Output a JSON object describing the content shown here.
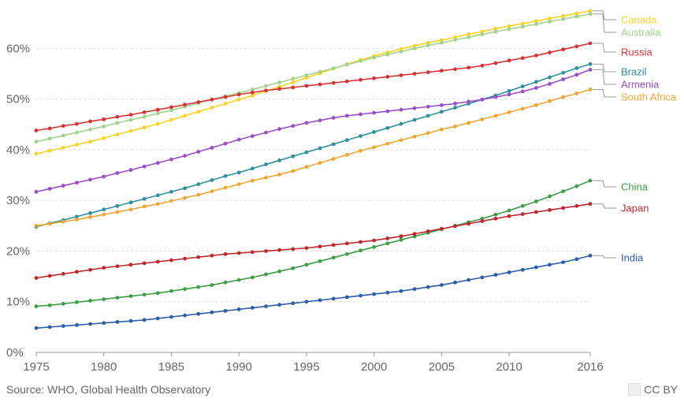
{
  "chart_data": {
    "type": "line",
    "title": "",
    "xlabel": "",
    "ylabel": "",
    "x": [
      1975,
      1976,
      1977,
      1978,
      1979,
      1980,
      1981,
      1982,
      1983,
      1984,
      1985,
      1986,
      1987,
      1988,
      1989,
      1990,
      1991,
      1992,
      1993,
      1994,
      1995,
      1996,
      1997,
      1998,
      1999,
      2000,
      2001,
      2002,
      2003,
      2004,
      2005,
      2006,
      2007,
      2008,
      2009,
      2010,
      2011,
      2012,
      2013,
      2014,
      2015,
      2016
    ],
    "x_ticks": [
      1975,
      1980,
      1985,
      1990,
      1995,
      2000,
      2005,
      2010,
      2016
    ],
    "y_ticks": [
      0,
      10,
      20,
      30,
      40,
      50,
      60
    ],
    "y_tick_labels": [
      "0%",
      "10%",
      "20%",
      "30%",
      "40%",
      "50%",
      "60%"
    ],
    "xlim": [
      1975,
      2016
    ],
    "ylim": [
      0,
      68
    ],
    "grid": "horizontal dashed",
    "legend": "right labels",
    "series": [
      {
        "name": "Canada",
        "color": "#f5d327",
        "values": [
          39.2,
          39.8,
          40.4,
          41.0,
          41.6,
          42.3,
          43.0,
          43.7,
          44.4,
          45.1,
          45.9,
          46.7,
          47.5,
          48.3,
          49.1,
          49.9,
          50.7,
          51.6,
          52.4,
          53.3,
          54.2,
          55.1,
          56.0,
          56.9,
          57.7,
          58.5,
          59.2,
          59.9,
          60.5,
          61.1,
          61.6,
          62.2,
          62.8,
          63.3,
          63.9,
          64.4,
          64.9,
          65.4,
          65.9,
          66.4,
          66.9,
          67.4
        ]
      },
      {
        "name": "Australia",
        "color": "#a3d28e",
        "values": [
          41.6,
          42.2,
          42.8,
          43.4,
          44.0,
          44.6,
          45.3,
          45.9,
          46.5,
          47.2,
          47.8,
          48.5,
          49.2,
          49.9,
          50.6,
          51.2,
          51.9,
          52.6,
          53.3,
          54.0,
          54.7,
          55.4,
          56.1,
          56.8,
          57.5,
          58.2,
          58.8,
          59.4,
          60.0,
          60.6,
          61.1,
          61.7,
          62.2,
          62.8,
          63.3,
          63.8,
          64.3,
          64.8,
          65.3,
          65.8,
          66.3,
          66.8
        ]
      },
      {
        "name": "Russia",
        "color": "#d83334",
        "values": [
          43.8,
          44.2,
          44.7,
          45.1,
          45.6,
          46.0,
          46.5,
          46.9,
          47.4,
          47.9,
          48.4,
          48.9,
          49.4,
          49.9,
          50.4,
          50.9,
          51.3,
          51.7,
          52.0,
          52.3,
          52.6,
          52.9,
          53.2,
          53.5,
          53.8,
          54.1,
          54.4,
          54.7,
          55.0,
          55.3,
          55.6,
          55.9,
          56.2,
          56.6,
          57.1,
          57.6,
          58.1,
          58.6,
          59.2,
          59.8,
          60.4,
          61.0
        ]
      },
      {
        "name": "Brazil",
        "color": "#2f8f9d",
        "values": [
          24.8,
          25.5,
          26.1,
          26.8,
          27.5,
          28.2,
          28.9,
          29.6,
          30.3,
          31.0,
          31.7,
          32.4,
          33.2,
          34.0,
          34.8,
          35.5,
          36.3,
          37.1,
          37.9,
          38.7,
          39.5,
          40.3,
          41.1,
          41.9,
          42.7,
          43.5,
          44.3,
          45.1,
          45.9,
          46.7,
          47.5,
          48.3,
          49.1,
          49.9,
          50.7,
          51.6,
          52.5,
          53.4,
          54.3,
          55.2,
          56.1,
          56.9
        ]
      },
      {
        "name": "Armenia",
        "color": "#9a4ec5",
        "values": [
          31.7,
          32.3,
          32.9,
          33.5,
          34.1,
          34.7,
          35.4,
          36.0,
          36.7,
          37.4,
          38.1,
          38.8,
          39.6,
          40.4,
          41.2,
          42.0,
          42.7,
          43.4,
          44.1,
          44.7,
          45.3,
          45.8,
          46.3,
          46.7,
          47.0,
          47.3,
          47.6,
          47.9,
          48.2,
          48.5,
          48.8,
          49.1,
          49.5,
          49.9,
          50.4,
          50.9,
          51.5,
          52.2,
          53.0,
          53.9,
          54.8,
          55.8
        ]
      },
      {
        "name": "South Africa",
        "color": "#f0a533",
        "values": [
          25.0,
          25.4,
          25.8,
          26.2,
          26.7,
          27.2,
          27.7,
          28.2,
          28.8,
          29.3,
          29.9,
          30.5,
          31.1,
          31.8,
          32.5,
          33.2,
          33.9,
          34.5,
          35.1,
          35.8,
          36.6,
          37.4,
          38.2,
          39.0,
          39.8,
          40.5,
          41.2,
          41.9,
          42.6,
          43.3,
          44.0,
          44.6,
          45.3,
          46.0,
          46.7,
          47.4,
          48.1,
          48.8,
          49.6,
          50.4,
          51.1,
          51.9
        ]
      },
      {
        "name": "China",
        "color": "#3e9d46",
        "values": [
          9.1,
          9.3,
          9.6,
          9.9,
          10.2,
          10.5,
          10.8,
          11.1,
          11.4,
          11.7,
          12.1,
          12.5,
          12.9,
          13.3,
          13.8,
          14.3,
          14.8,
          15.4,
          16.0,
          16.6,
          17.3,
          18.0,
          18.7,
          19.4,
          20.1,
          20.8,
          21.5,
          22.2,
          22.9,
          23.6,
          24.3,
          25.0,
          25.7,
          26.4,
          27.2,
          28.0,
          28.9,
          29.8,
          30.8,
          31.8,
          32.8,
          33.9
        ]
      },
      {
        "name": "Japan",
        "color": "#c0282f",
        "values": [
          14.7,
          15.1,
          15.5,
          15.9,
          16.3,
          16.7,
          17.0,
          17.3,
          17.6,
          17.9,
          18.2,
          18.5,
          18.8,
          19.1,
          19.4,
          19.6,
          19.8,
          20.0,
          20.2,
          20.4,
          20.6,
          20.9,
          21.2,
          21.5,
          21.8,
          22.1,
          22.5,
          22.9,
          23.4,
          23.9,
          24.4,
          24.9,
          25.4,
          25.9,
          26.4,
          26.9,
          27.3,
          27.7,
          28.1,
          28.5,
          28.9,
          29.3
        ]
      },
      {
        "name": "India",
        "color": "#2b5ea8",
        "values": [
          4.8,
          5.0,
          5.2,
          5.4,
          5.6,
          5.8,
          6.0,
          6.2,
          6.4,
          6.7,
          7.0,
          7.3,
          7.6,
          7.9,
          8.2,
          8.5,
          8.8,
          9.1,
          9.4,
          9.7,
          10.0,
          10.3,
          10.6,
          10.9,
          11.2,
          11.5,
          11.8,
          12.1,
          12.5,
          12.9,
          13.3,
          13.8,
          14.3,
          14.8,
          15.3,
          15.8,
          16.3,
          16.8,
          17.3,
          17.8,
          18.4,
          19.1
        ]
      }
    ],
    "legend_order": [
      "Canada",
      "Australia",
      "Russia",
      "Brazil",
      "Armenia",
      "South Africa",
      "China",
      "Japan",
      "India"
    ]
  },
  "footer": {
    "source": "Source: WHO, Global Health Observatory",
    "license": "CC BY"
  }
}
